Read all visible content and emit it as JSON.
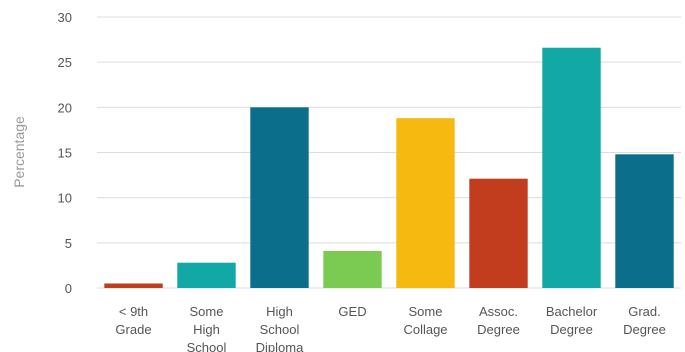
{
  "chart_data": {
    "type": "bar",
    "y_label": "Percentage",
    "categories": [
      "< 9th\nGrade",
      "Some\nHigh\nSchool",
      "High\nSchool\nDiploma",
      "GED",
      "Some\nCollage",
      "Assoc.\nDegree",
      "Bachelor\nDegree",
      "Grad.\nDegree"
    ],
    "values": [
      0.5,
      2.8,
      20,
      4.1,
      18.8,
      12.1,
      26.6,
      14.8
    ],
    "colors": [
      "#c23c1e",
      "#12a8a6",
      "#0b6f8c",
      "#7bcb52",
      "#f5b90f",
      "#c23c1e",
      "#12a8a6",
      "#0b6f8c"
    ],
    "ylim": [
      0,
      30
    ],
    "yticks": [
      0,
      5,
      10,
      15,
      20,
      25,
      30
    ],
    "grid": true
  }
}
